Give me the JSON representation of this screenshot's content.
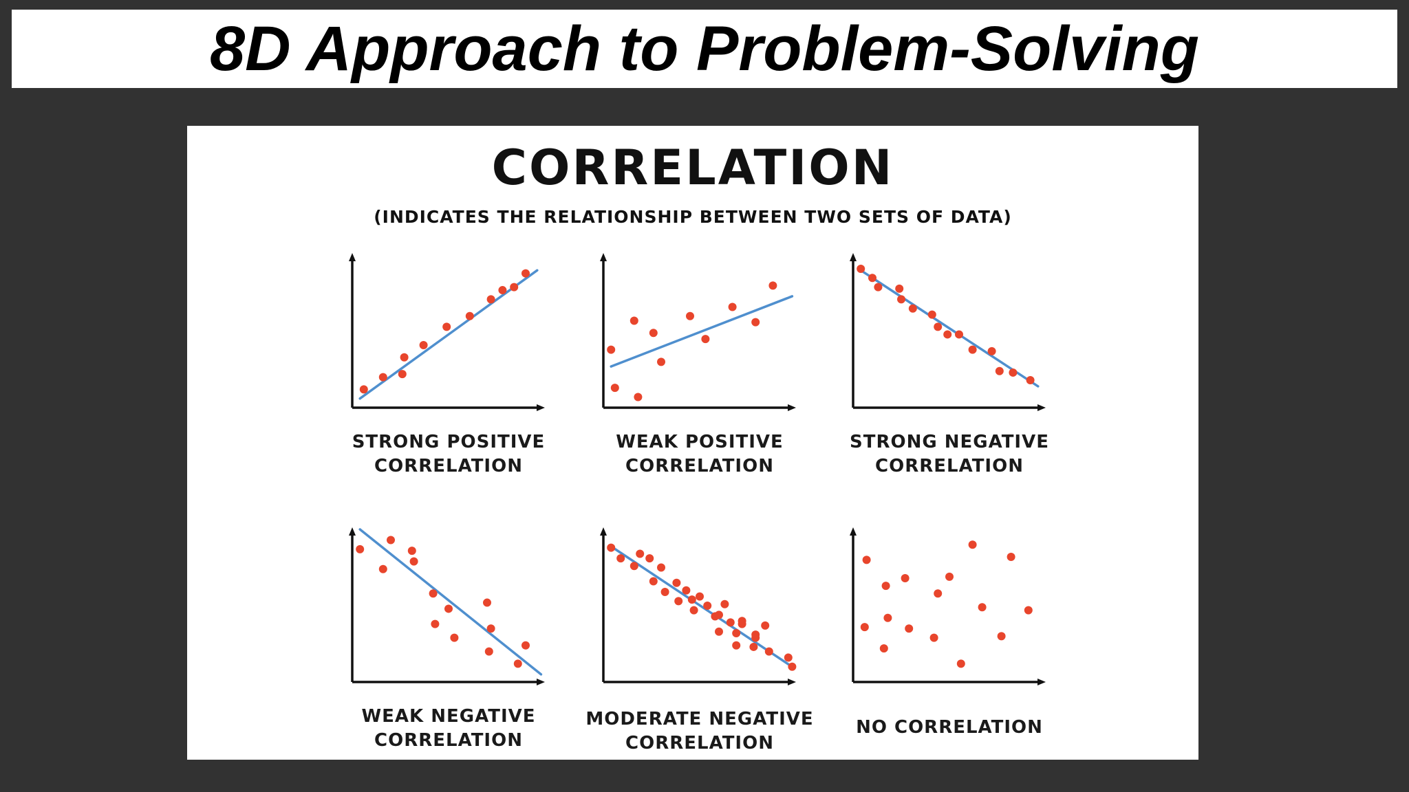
{
  "page_title": "8D Approach to Problem-Solving",
  "figure": {
    "heading": "CORRELATION",
    "subheading": "(INDICATES THE RELATIONSHIP BETWEEN TWO SETS OF DATA)"
  },
  "colors": {
    "point": "#e8452c",
    "trend_line": "#4f8fce",
    "axis": "#111111"
  },
  "chart_data": [
    {
      "type": "scatter",
      "title_lines": [
        "STRONG POSITIVE",
        "CORRELATION"
      ],
      "xlim": [
        0,
        100
      ],
      "ylim": [
        0,
        100
      ],
      "trend_line": [
        [
          4,
          6
        ],
        [
          96,
          90
        ]
      ],
      "points": [
        [
          6,
          12
        ],
        [
          16,
          20
        ],
        [
          26,
          22
        ],
        [
          27,
          33
        ],
        [
          37,
          41
        ],
        [
          49,
          53
        ],
        [
          61,
          60
        ],
        [
          72,
          71
        ],
        [
          78,
          77
        ],
        [
          84,
          79
        ],
        [
          90,
          88
        ]
      ]
    },
    {
      "type": "scatter",
      "title_lines": [
        "WEAK POSITIVE",
        "CORRELATION"
      ],
      "xlim": [
        0,
        100
      ],
      "ylim": [
        0,
        100
      ],
      "trend_line": [
        [
          4,
          27
        ],
        [
          98,
          73
        ]
      ],
      "points": [
        [
          4,
          38
        ],
        [
          6,
          13
        ],
        [
          16,
          57
        ],
        [
          18,
          7
        ],
        [
          26,
          49
        ],
        [
          30,
          30
        ],
        [
          45,
          60
        ],
        [
          53,
          45
        ],
        [
          67,
          66
        ],
        [
          79,
          56
        ],
        [
          88,
          80
        ]
      ]
    },
    {
      "type": "scatter",
      "title_lines": [
        "STRONG NEGATIVE",
        "CORRELATION"
      ],
      "xlim": [
        0,
        100
      ],
      "ylim": [
        0,
        100
      ],
      "trend_line": [
        [
          4,
          90
        ],
        [
          96,
          14
        ]
      ],
      "points": [
        [
          4,
          91
        ],
        [
          10,
          85
        ],
        [
          13,
          79
        ],
        [
          24,
          78
        ],
        [
          25,
          71
        ],
        [
          31,
          65
        ],
        [
          41,
          61
        ],
        [
          44,
          53
        ],
        [
          49,
          48
        ],
        [
          55,
          48
        ],
        [
          62,
          38
        ],
        [
          72,
          37
        ],
        [
          76,
          24
        ],
        [
          83,
          23
        ],
        [
          92,
          18
        ]
      ]
    },
    {
      "type": "scatter",
      "title_lines": [
        "WEAK NEGATIVE",
        "CORRELATION"
      ],
      "xlim": [
        0,
        100
      ],
      "ylim": [
        0,
        100
      ],
      "trend_line": [
        [
          4,
          100
        ],
        [
          98,
          5
        ]
      ],
      "points": [
        [
          4,
          87
        ],
        [
          16,
          74
        ],
        [
          20,
          93
        ],
        [
          31,
          86
        ],
        [
          32,
          79
        ],
        [
          42,
          58
        ],
        [
          43,
          38
        ],
        [
          50,
          48
        ],
        [
          53,
          29
        ],
        [
          70,
          52
        ],
        [
          72,
          35
        ],
        [
          71,
          20
        ],
        [
          86,
          12
        ],
        [
          90,
          24
        ]
      ]
    },
    {
      "type": "scatter",
      "title_lines": [
        "MODERATE NEGATIVE",
        "CORRELATION"
      ],
      "xlim": [
        0,
        100
      ],
      "ylim": [
        0,
        100
      ],
      "trend_line": [
        [
          5,
          88
        ],
        [
          98,
          10
        ]
      ],
      "points": [
        [
          4,
          88
        ],
        [
          9,
          81
        ],
        [
          16,
          76
        ],
        [
          19,
          84
        ],
        [
          24,
          81
        ],
        [
          26,
          66
        ],
        [
          30,
          75
        ],
        [
          32,
          59
        ],
        [
          38,
          65
        ],
        [
          39,
          53
        ],
        [
          43,
          60
        ],
        [
          46,
          54
        ],
        [
          47,
          47
        ],
        [
          50,
          56
        ],
        [
          54,
          50
        ],
        [
          58,
          43
        ],
        [
          60,
          44
        ],
        [
          60,
          33
        ],
        [
          63,
          51
        ],
        [
          66,
          39
        ],
        [
          69,
          32
        ],
        [
          69,
          24
        ],
        [
          72,
          38
        ],
        [
          72,
          40
        ],
        [
          78,
          23
        ],
        [
          79,
          29
        ],
        [
          79,
          31
        ],
        [
          84,
          37
        ],
        [
          86,
          20
        ],
        [
          96,
          16
        ],
        [
          98,
          10
        ]
      ]
    },
    {
      "type": "scatter",
      "title_lines": [
        "NO CORRELATION"
      ],
      "xlim": [
        0,
        100
      ],
      "ylim": [
        0,
        100
      ],
      "trend_line": null,
      "points": [
        [
          7,
          80
        ],
        [
          6,
          36
        ],
        [
          16,
          22
        ],
        [
          17,
          63
        ],
        [
          18,
          42
        ],
        [
          27,
          68
        ],
        [
          29,
          35
        ],
        [
          42,
          29
        ],
        [
          44,
          58
        ],
        [
          50,
          69
        ],
        [
          56,
          12
        ],
        [
          62,
          90
        ],
        [
          67,
          49
        ],
        [
          77,
          30
        ],
        [
          82,
          82
        ],
        [
          91,
          47
        ]
      ]
    }
  ]
}
